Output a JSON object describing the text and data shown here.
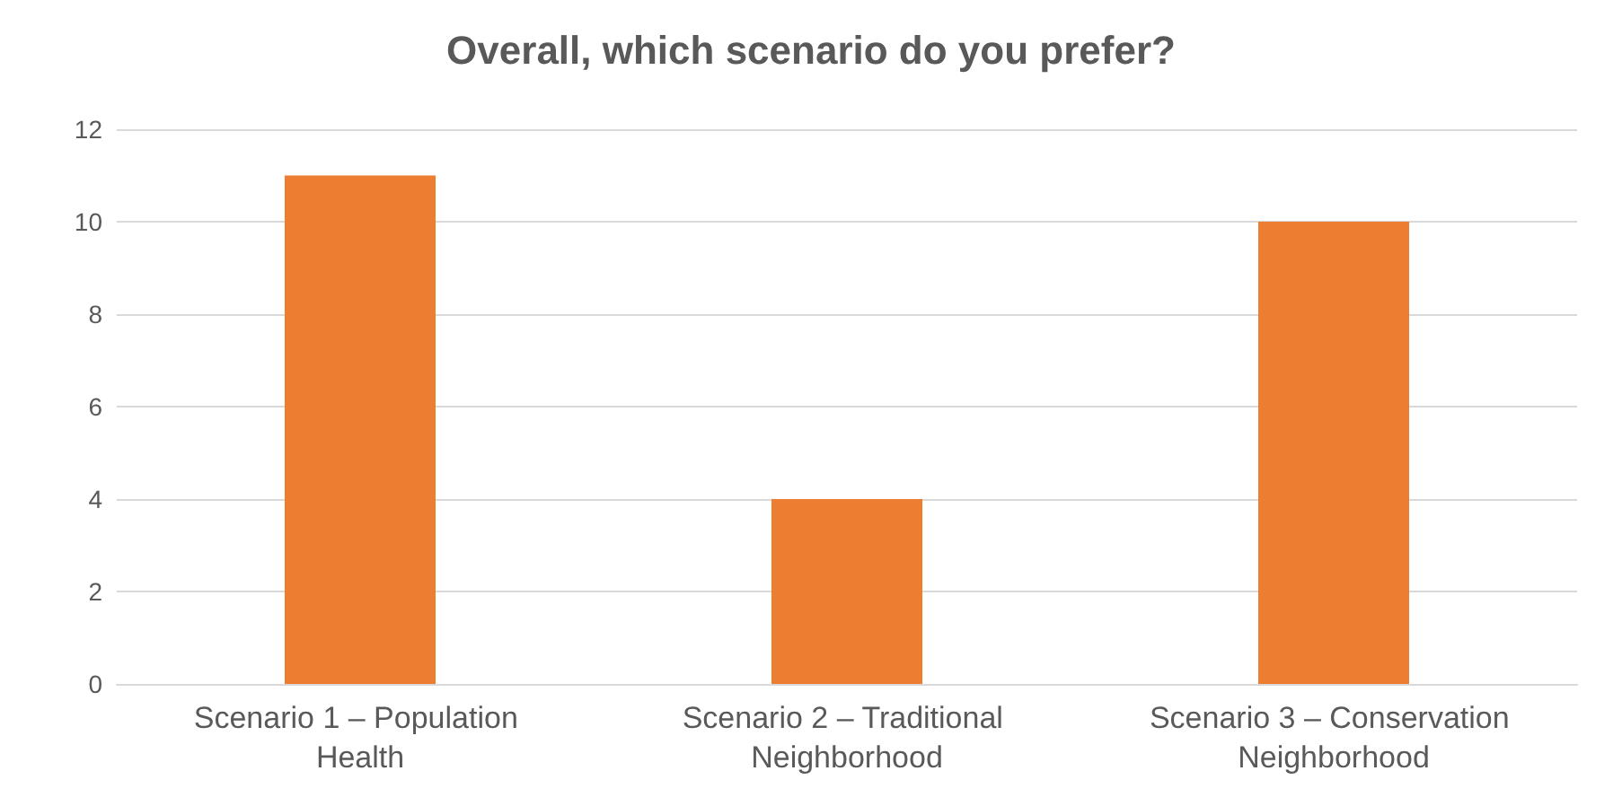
{
  "chart_data": {
    "type": "bar",
    "title": "Overall, which scenario do you prefer?",
    "categories": [
      "Scenario 1 – Population Health",
      "Scenario 2 – Traditional Neighborhood",
      "Scenario 3 – Conservation Neighborhood"
    ],
    "values": [
      11,
      4,
      10
    ],
    "color": "#ed7d31",
    "ylim": [
      0,
      12
    ],
    "yticks": [
      0,
      2,
      4,
      6,
      8,
      10,
      12
    ],
    "grid": "y"
  }
}
